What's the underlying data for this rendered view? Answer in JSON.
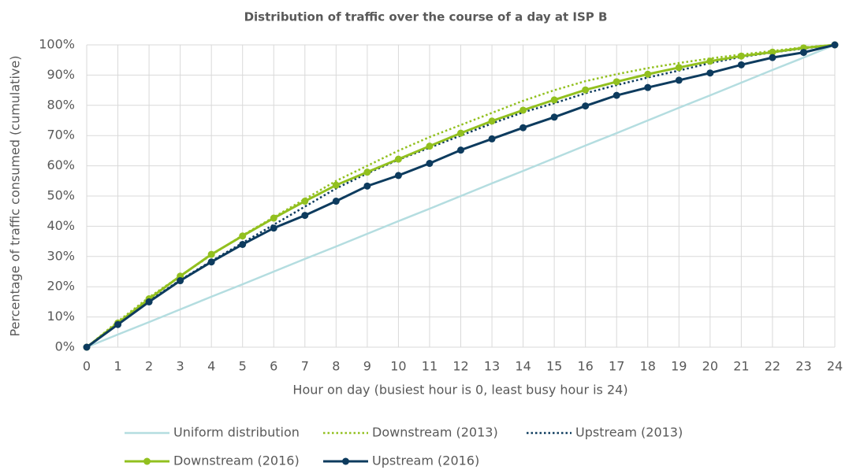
{
  "chart_data": {
    "type": "line",
    "title": "Distribution of traffic over the course of a day at ISP B",
    "x_label": "Hour on day (busiest hour is 0, least busy hour is 24)",
    "y_label": "Percentage of traffic consumed (cumulative)",
    "x": [
      0,
      1,
      2,
      3,
      4,
      5,
      6,
      7,
      8,
      9,
      10,
      11,
      12,
      13,
      14,
      15,
      16,
      17,
      18,
      19,
      20,
      21,
      22,
      23,
      24
    ],
    "xlim": [
      0,
      24
    ],
    "xticks": [
      0,
      1,
      2,
      3,
      4,
      5,
      6,
      7,
      8,
      9,
      10,
      11,
      12,
      13,
      14,
      15,
      16,
      17,
      18,
      19,
      20,
      21,
      22,
      23,
      24
    ],
    "ylim": [
      0,
      100
    ],
    "yticks": [
      {
        "value": 0,
        "label": "0%"
      },
      {
        "value": 10,
        "label": "10%"
      },
      {
        "value": 20,
        "label": "20%"
      },
      {
        "value": 30,
        "label": "30%"
      },
      {
        "value": 40,
        "label": "40%"
      },
      {
        "value": 50,
        "label": "50%"
      },
      {
        "value": 60,
        "label": "60%"
      },
      {
        "value": 70,
        "label": "70%"
      },
      {
        "value": 80,
        "label": "80%"
      },
      {
        "value": 90,
        "label": "90%"
      },
      {
        "value": 100,
        "label": "100%"
      }
    ],
    "grid": true,
    "legend": "bottom",
    "series": [
      {
        "name": "Uniform distribution",
        "color": "#b4dde0",
        "style": "solid",
        "markers": false,
        "values": [
          0,
          4.2,
          8.3,
          12.5,
          16.7,
          20.8,
          25,
          29.2,
          33.3,
          37.5,
          41.7,
          45.8,
          50,
          54.2,
          58.3,
          62.5,
          66.7,
          70.8,
          75,
          79.2,
          83.3,
          87.5,
          91.7,
          95.8,
          100
        ]
      },
      {
        "name": "Downstream (2013)",
        "color": "#92c01f",
        "style": "dotted",
        "markers": false,
        "values": [
          0,
          8.5,
          16.5,
          23.5,
          30.5,
          37,
          43,
          49,
          55,
          60,
          65,
          69.5,
          73.5,
          77.5,
          81.5,
          85,
          88,
          90.3,
          92.3,
          94,
          95.5,
          96.8,
          98,
          99.2,
          100
        ]
      },
      {
        "name": "Upstream (2013)",
        "color": "#0d3b5e",
        "style": "dotted",
        "markers": false,
        "values": [
          0,
          7.7,
          15.3,
          22.2,
          28.5,
          34.5,
          40.5,
          46.5,
          52.5,
          57.5,
          62,
          66,
          70,
          74,
          77.7,
          80.7,
          84,
          86.7,
          89.2,
          91.5,
          94,
          96,
          97.5,
          98.8,
          100
        ]
      },
      {
        "name": "Downstream (2016)",
        "color": "#92c01f",
        "style": "solid",
        "markers": true,
        "values": [
          0,
          8,
          16,
          23.5,
          30.7,
          36.8,
          42.7,
          48.3,
          53.6,
          57.9,
          62.2,
          66.5,
          70.8,
          74.8,
          78.4,
          81.8,
          85.1,
          87.8,
          90.3,
          92.5,
          94.6,
          96.3,
          97.6,
          99,
          100
        ]
      },
      {
        "name": "Upstream (2016)",
        "color": "#0d3b5e",
        "style": "solid",
        "markers": true,
        "values": [
          0,
          7.5,
          15,
          22,
          28.2,
          34,
          39.4,
          43.6,
          48.3,
          53.3,
          56.8,
          60.8,
          65.2,
          68.9,
          72.6,
          76.1,
          79.8,
          83.3,
          85.9,
          88.3,
          90.7,
          93.4,
          95.8,
          97.5,
          100
        ]
      }
    ]
  }
}
